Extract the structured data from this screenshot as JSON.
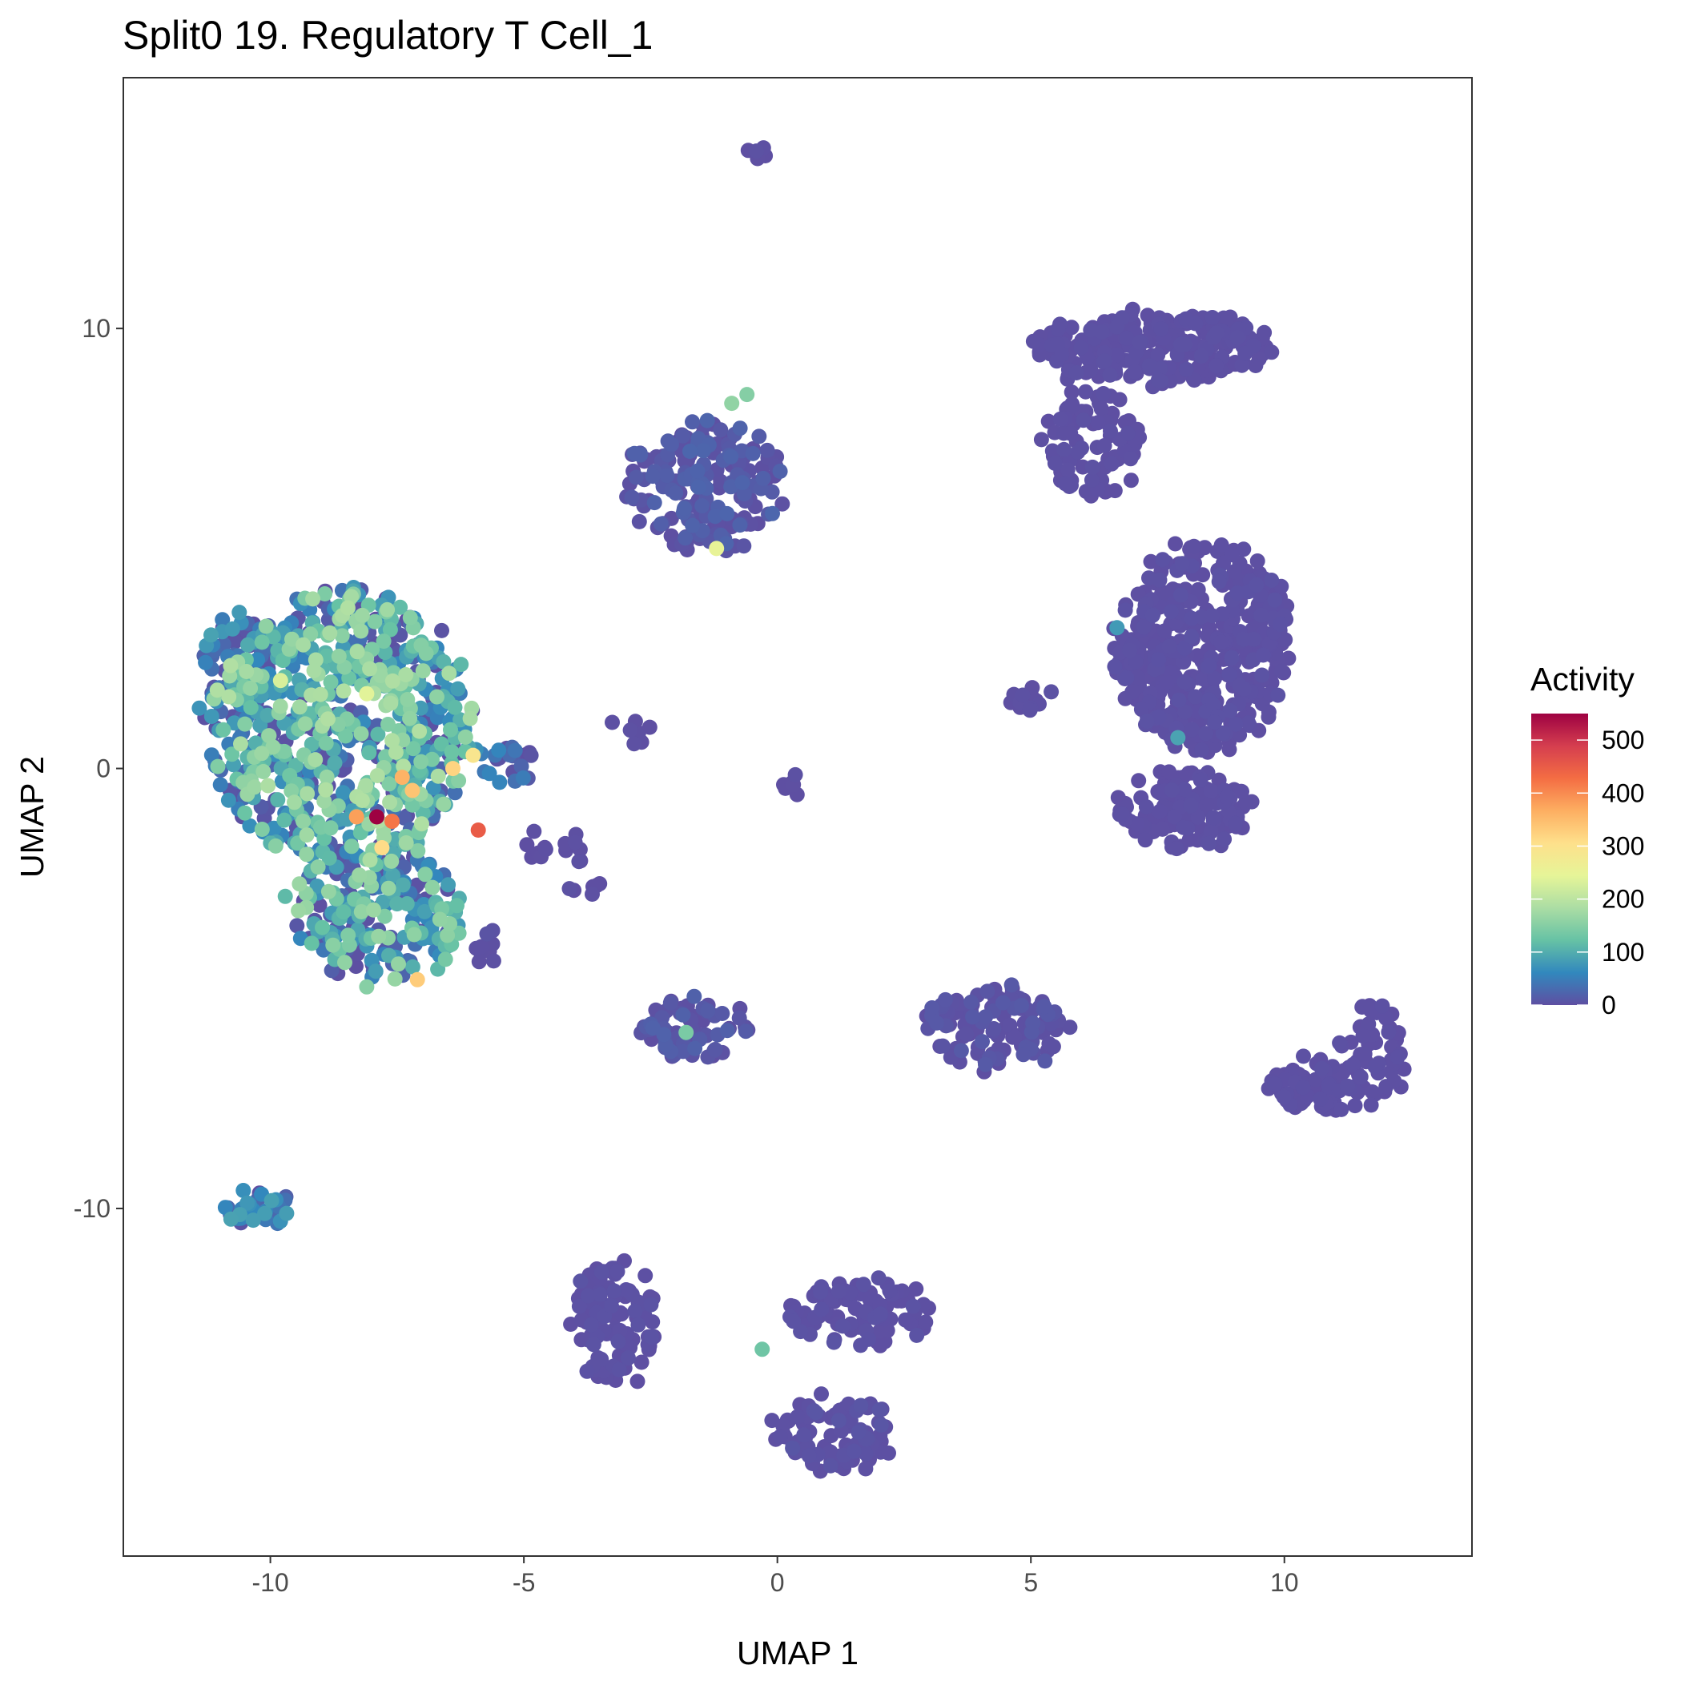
{
  "chart_data": {
    "type": "scatter",
    "title": "Split0 19. Regulatory T Cell_1",
    "xlabel": "UMAP 1",
    "ylabel": "UMAP 2",
    "xlim": [
      -12.9,
      13.7
    ],
    "ylim": [
      -17.9,
      15.7
    ],
    "x_ticks": [
      -10,
      -5,
      0,
      5,
      10
    ],
    "y_ticks": [
      -10,
      0,
      10
    ],
    "x_tick_labels": [
      "-10",
      "-5",
      "0",
      "5",
      "10"
    ],
    "y_tick_labels": [
      "-10",
      "0",
      "10"
    ],
    "grid": false,
    "legend": {
      "title": "Activity",
      "placement": "right",
      "min": 0,
      "max": 550,
      "ticks": [
        0,
        100,
        200,
        300,
        400,
        500
      ],
      "tick_labels": [
        "0",
        "100",
        "200",
        "300",
        "400",
        "500"
      ],
      "colormap": [
        "#5e4fa2",
        "#3288bd",
        "#66c2a5",
        "#abdda4",
        "#e6f598",
        "#fee08b",
        "#fdae61",
        "#f46d43",
        "#d53e4f",
        "#9e0142"
      ]
    },
    "clusters": [
      {
        "cx": -8.6,
        "cy": 0.9,
        "rx": 2.6,
        "ry": 3.2,
        "n": 700,
        "base": 80,
        "spread": 110
      },
      {
        "cx": -7.9,
        "cy": -3.3,
        "rx": 1.7,
        "ry": 1.6,
        "n": 220,
        "base": 70,
        "spread": 100
      },
      {
        "cx": -10.6,
        "cy": 2.2,
        "rx": 0.9,
        "ry": 1.3,
        "n": 80,
        "base": 40,
        "spread": 60
      },
      {
        "cx": -5.3,
        "cy": 0.1,
        "rx": 0.6,
        "ry": 0.4,
        "n": 25,
        "base": 20,
        "spread": 40
      },
      {
        "cx": -10.2,
        "cy": -10.0,
        "rx": 0.6,
        "ry": 0.35,
        "n": 35,
        "base": 40,
        "spread": 50
      },
      {
        "cx": -1.4,
        "cy": 6.4,
        "rx": 1.5,
        "ry": 1.5,
        "n": 190,
        "base": 5,
        "spread": 20
      },
      {
        "cx": -3.2,
        "cy": -12.6,
        "rx": 0.8,
        "ry": 1.4,
        "n": 110,
        "base": 0,
        "spread": 5
      },
      {
        "cx": -1.6,
        "cy": -5.9,
        "rx": 1.0,
        "ry": 0.65,
        "n": 70,
        "base": 5,
        "spread": 15
      },
      {
        "cx": 1.6,
        "cy": -12.4,
        "rx": 1.4,
        "ry": 0.8,
        "n": 90,
        "base": 0,
        "spread": 5
      },
      {
        "cx": 1.1,
        "cy": -15.1,
        "rx": 1.2,
        "ry": 0.9,
        "n": 90,
        "base": 0,
        "spread": 8
      },
      {
        "cx": 4.3,
        "cy": -5.9,
        "rx": 1.4,
        "ry": 0.9,
        "n": 120,
        "base": 2,
        "spread": 10
      },
      {
        "cx": 7.4,
        "cy": 9.6,
        "rx": 2.3,
        "ry": 0.8,
        "n": 260,
        "base": 0,
        "spread": 3
      },
      {
        "cx": 6.2,
        "cy": 7.4,
        "rx": 0.9,
        "ry": 1.3,
        "n": 90,
        "base": 0,
        "spread": 3
      },
      {
        "cx": 8.4,
        "cy": 2.8,
        "rx": 1.7,
        "ry": 2.4,
        "n": 450,
        "base": 0,
        "spread": 4
      },
      {
        "cx": 8.0,
        "cy": -0.9,
        "rx": 1.3,
        "ry": 0.9,
        "n": 130,
        "base": 0,
        "spread": 3
      },
      {
        "cx": 10.6,
        "cy": -7.2,
        "rx": 0.8,
        "ry": 0.6,
        "n": 70,
        "base": 0,
        "spread": 3
      },
      {
        "cx": 11.7,
        "cy": -6.5,
        "rx": 0.7,
        "ry": 1.2,
        "n": 55,
        "base": 0,
        "spread": 3
      },
      {
        "cx": 4.9,
        "cy": 1.6,
        "rx": 0.5,
        "ry": 0.3,
        "n": 12,
        "base": 0,
        "spread": 3
      },
      {
        "cx": -0.4,
        "cy": 14.0,
        "rx": 0.15,
        "ry": 0.2,
        "n": 6,
        "base": 0,
        "spread": 3
      },
      {
        "cx": 0.3,
        "cy": -0.4,
        "rx": 0.2,
        "ry": 0.15,
        "n": 6,
        "base": 0,
        "spread": 3
      },
      {
        "cx": -2.9,
        "cy": 0.9,
        "rx": 0.25,
        "ry": 0.3,
        "n": 8,
        "base": 0,
        "spread": 3
      },
      {
        "cx": -4.4,
        "cy": -1.8,
        "rx": 0.7,
        "ry": 0.4,
        "n": 14,
        "base": 0,
        "spread": 3
      },
      {
        "cx": -3.8,
        "cy": -2.7,
        "rx": 0.3,
        "ry": 0.2,
        "n": 6,
        "base": 0,
        "spread": 3
      },
      {
        "cx": -5.8,
        "cy": -4.0,
        "rx": 0.3,
        "ry": 0.5,
        "n": 10,
        "base": 0,
        "spread": 5
      }
    ],
    "highlights": [
      {
        "x": -7.9,
        "y": -1.1,
        "value": 550
      },
      {
        "x": -5.9,
        "y": -1.4,
        "value": 450
      },
      {
        "x": -8.3,
        "y": -1.1,
        "value": 380
      },
      {
        "x": -7.6,
        "y": -1.2,
        "value": 420
      },
      {
        "x": -7.2,
        "y": -0.5,
        "value": 340
      },
      {
        "x": -7.4,
        "y": -0.2,
        "value": 360
      },
      {
        "x": -6.4,
        "y": 0.0,
        "value": 320
      },
      {
        "x": -6.0,
        "y": 0.3,
        "value": 290
      },
      {
        "x": -7.8,
        "y": -1.8,
        "value": 310
      },
      {
        "x": -7.1,
        "y": -4.8,
        "value": 330
      },
      {
        "x": -8.1,
        "y": 1.7,
        "value": 240
      },
      {
        "x": -9.8,
        "y": 2.0,
        "value": 230
      },
      {
        "x": -1.2,
        "y": 5.0,
        "value": 250
      },
      {
        "x": -0.6,
        "y": 8.5,
        "value": 150
      },
      {
        "x": -0.9,
        "y": 8.3,
        "value": 160
      },
      {
        "x": -1.8,
        "y": -6.0,
        "value": 140
      },
      {
        "x": -0.3,
        "y": -13.2,
        "value": 130
      },
      {
        "x": 7.9,
        "y": 0.7,
        "value": 90
      },
      {
        "x": 6.7,
        "y": 3.2,
        "value": 80
      }
    ]
  }
}
